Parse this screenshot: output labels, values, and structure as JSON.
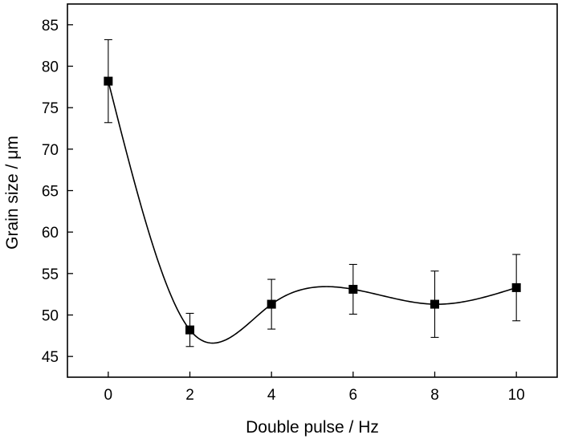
{
  "chart_data": {
    "type": "scatter",
    "xlabel": "Double pulse / Hz",
    "ylabel": "Grain size / μm",
    "x_ticks": [
      0,
      2,
      4,
      6,
      8,
      10
    ],
    "y_ticks": [
      45,
      50,
      55,
      60,
      65,
      70,
      75,
      80,
      85
    ],
    "xlim": [
      -1.0,
      11.0
    ],
    "ylim": [
      42.5,
      87.5
    ],
    "grid": false,
    "smooth_curve": true,
    "series": [
      {
        "x": [
          0,
          2,
          4,
          6,
          8,
          10
        ],
        "values": [
          78.2,
          48.2,
          51.3,
          53.1,
          51.3,
          53.3
        ],
        "error": [
          5.0,
          2.0,
          3.0,
          3.0,
          4.0,
          4.0
        ],
        "marker": "square",
        "color": "#000000"
      }
    ]
  }
}
